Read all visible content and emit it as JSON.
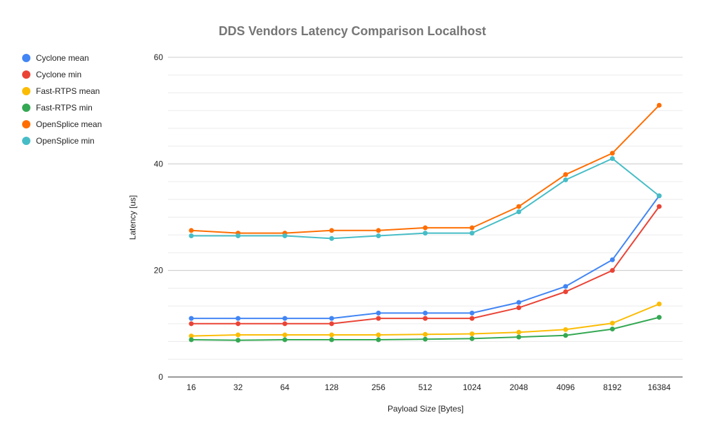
{
  "chart_data": {
    "type": "line",
    "title": "DDS Vendors Latency Comparison Localhost",
    "xlabel": "Payload Size [Bytes]",
    "ylabel": "Latency [us]",
    "categories": [
      "16",
      "32",
      "64",
      "128",
      "256",
      "512",
      "1024",
      "2048",
      "4096",
      "8192",
      "16384"
    ],
    "ylim": [
      0,
      60
    ],
    "yticks": [
      "0",
      "20",
      "40",
      "60"
    ],
    "minor_grid_step": 3.3333,
    "legend_position": "left",
    "series": [
      {
        "name": "Cyclone mean",
        "color": "#4285f4",
        "values": [
          11,
          11,
          11,
          11,
          12,
          12,
          12,
          14,
          17,
          22,
          34
        ]
      },
      {
        "name": "Cyclone min",
        "color": "#ea4335",
        "values": [
          10,
          10,
          10,
          10,
          11,
          11,
          11,
          13,
          16,
          20,
          32
        ]
      },
      {
        "name": "Fast-RTPS mean",
        "color": "#fbbc04",
        "values": [
          7.7,
          7.9,
          7.9,
          7.9,
          7.9,
          8.0,
          8.1,
          8.4,
          8.9,
          10.1,
          13.7
        ]
      },
      {
        "name": "Fast-RTPS min",
        "color": "#34a853",
        "values": [
          7.0,
          6.9,
          7.0,
          7.0,
          7.0,
          7.1,
          7.2,
          7.5,
          7.8,
          9.0,
          11.2
        ]
      },
      {
        "name": "OpenSplice mean",
        "color": "#ff6d01",
        "values": [
          27.5,
          27,
          27,
          27.5,
          27.5,
          28,
          28,
          32,
          38,
          42,
          51
        ]
      },
      {
        "name": "OpenSplice min",
        "color": "#46bdc6",
        "values": [
          26.5,
          26.5,
          26.5,
          26,
          26.5,
          27,
          27,
          31,
          37,
          41,
          34
        ]
      }
    ]
  }
}
